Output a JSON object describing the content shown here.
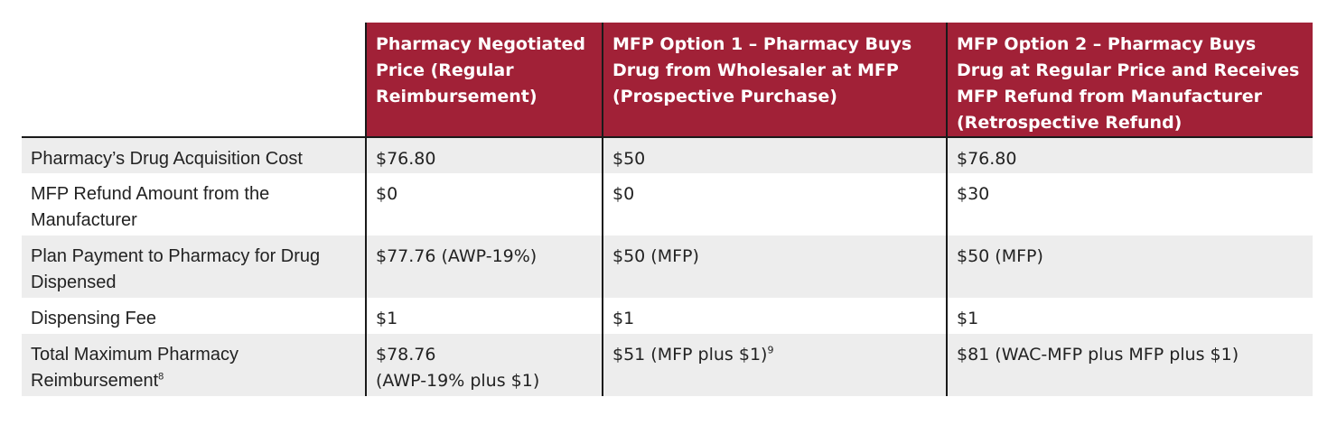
{
  "colors": {
    "header_bg": "#a12137",
    "row_shade": "#ededed",
    "rule": "#1a1a1a"
  },
  "headers": [
    "",
    "Pharmacy Negotiated Price (Regular Reimbursement)",
    "MFP Option 1 – Pharmacy Buys Drug from Wholesaler at MFP (Prospective Purchase)",
    "MFP Option 2 – Pharmacy Buys Drug at Regular Price and Receives MFP Refund from Manufacturer (Retrospective Refund)"
  ],
  "rows": [
    {
      "label": "Pharmacy’s Drug Acquisition Cost",
      "values": [
        "$76.80",
        "$50",
        "$76.80"
      ]
    },
    {
      "label": "MFP Refund Amount from the Manufacturer",
      "values": [
        "$0",
        "$0",
        "$30"
      ]
    },
    {
      "label": "Plan Payment to Pharmacy for Drug Dispensed",
      "values": [
        "$77.76 (AWP-19%)",
        "$50 (MFP)",
        "$50 (MFP)"
      ]
    },
    {
      "label": "Dispensing Fee",
      "values": [
        "$1",
        "$1",
        "$1"
      ]
    },
    {
      "label": "Total Maximum Pharmacy Reimbursement",
      "label_sup": "8",
      "values": [
        "$78.76",
        "$51 (MFP plus $1)",
        "$81 (WAC-MFP plus MFP plus $1)"
      ],
      "value_line2": "(AWP-19% plus $1)",
      "value_sup": "9"
    }
  ]
}
